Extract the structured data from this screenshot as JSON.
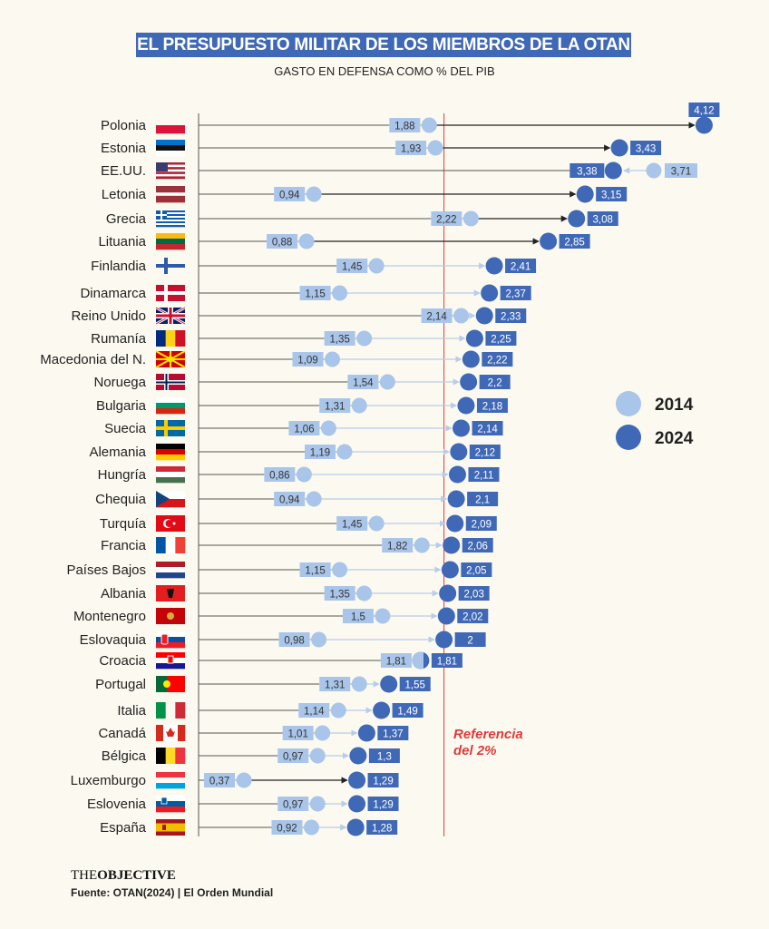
{
  "title": "EL PRESUPUESTO MILITAR DE LOS MIEMBROS DE LA OTAN",
  "subtitle": "GASTO EN DEFENSA COMO % DEL PIB",
  "brand": {
    "the": "THE",
    "objective": "OBJECTIVE"
  },
  "source": "Fuente: OTAN(2024) | El Orden Mundial",
  "chart_data": {
    "type": "dumbbell",
    "title": "EL PRESUPUESTO MILITAR DE LOS MIEMBROS DE LA OTAN",
    "ylabel": "Gasto en defensa como % del PIB",
    "xlim": [
      0,
      4.2
    ],
    "legend": {
      "position": "right",
      "entries": [
        "2014",
        "2024"
      ]
    },
    "colors": {
      "2014": "#a9c5ea",
      "2024": "#3f68b6",
      "reference": "#e03a3a"
    },
    "reference": {
      "value": 2,
      "label_line1": "Referencia",
      "label_line2": "del 2%"
    },
    "countries": [
      {
        "name": "Polonia",
        "v2014": 1.88,
        "v2024": 4.12,
        "l2014": "1,88",
        "l2024": "4,12"
      },
      {
        "name": "Estonia",
        "v2014": 1.93,
        "v2024": 3.43,
        "l2014": "1,93",
        "l2024": "3,43"
      },
      {
        "name": "EE.UU.",
        "v2014": 3.71,
        "v2024": 3.38,
        "l2014": "3,71",
        "l2024": "3,38"
      },
      {
        "name": "Letonia",
        "v2014": 0.94,
        "v2024": 3.15,
        "l2014": "0,94",
        "l2024": "3,15"
      },
      {
        "name": "Grecia",
        "v2014": 2.22,
        "v2024": 3.08,
        "l2014": "2,22",
        "l2024": "3,08"
      },
      {
        "name": "Lituania",
        "v2014": 0.88,
        "v2024": 2.85,
        "l2014": "0,88",
        "l2024": "2,85"
      },
      {
        "name": "Finlandia",
        "v2014": 1.45,
        "v2024": 2.41,
        "l2014": "1,45",
        "l2024": "2,41"
      },
      {
        "name": "Dinamarca",
        "v2014": 1.15,
        "v2024": 2.37,
        "l2014": "1,15",
        "l2024": "2,37"
      },
      {
        "name": "Reino Unido",
        "v2014": 2.14,
        "v2024": 2.33,
        "l2014": "2,14",
        "l2024": "2,33"
      },
      {
        "name": "Rumanía",
        "v2014": 1.35,
        "v2024": 2.25,
        "l2014": "1,35",
        "l2024": "2,25"
      },
      {
        "name": "Macedonia del N.",
        "v2014": 1.09,
        "v2024": 2.22,
        "l2014": "1,09",
        "l2024": "2,22"
      },
      {
        "name": "Noruega",
        "v2014": 1.54,
        "v2024": 2.2,
        "l2014": "1,54",
        "l2024": "2,2"
      },
      {
        "name": "Bulgaria",
        "v2014": 1.31,
        "v2024": 2.18,
        "l2014": "1,31",
        "l2024": "2,18"
      },
      {
        "name": "Suecia",
        "v2014": 1.06,
        "v2024": 2.14,
        "l2014": "1,06",
        "l2024": "2,14"
      },
      {
        "name": "Alemania",
        "v2014": 1.19,
        "v2024": 2.12,
        "l2014": "1,19",
        "l2024": "2,12"
      },
      {
        "name": "Hungría",
        "v2014": 0.86,
        "v2024": 2.11,
        "l2014": "0,86",
        "l2024": "2,11"
      },
      {
        "name": "Chequia",
        "v2014": 0.94,
        "v2024": 2.1,
        "l2014": "0,94",
        "l2024": "2,1"
      },
      {
        "name": "Turquía",
        "v2014": 1.45,
        "v2024": 2.09,
        "l2014": "1,45",
        "l2024": "2,09"
      },
      {
        "name": "Francia",
        "v2014": 1.82,
        "v2024": 2.06,
        "l2014": "1,82",
        "l2024": "2,06"
      },
      {
        "name": "Países Bajos",
        "v2014": 1.15,
        "v2024": 2.05,
        "l2014": "1,15",
        "l2024": "2,05"
      },
      {
        "name": "Albania",
        "v2014": 1.35,
        "v2024": 2.03,
        "l2014": "1,35",
        "l2024": "2,03"
      },
      {
        "name": "Montenegro",
        "v2014": 1.5,
        "v2024": 2.02,
        "l2014": "1,5",
        "l2024": "2,02"
      },
      {
        "name": "Eslovaquia",
        "v2014": 0.98,
        "v2024": 2.0,
        "l2014": "0,98",
        "l2024": "2"
      },
      {
        "name": "Croacia",
        "v2014": 1.81,
        "v2024": 1.81,
        "l2014": "1,81",
        "l2024": "1,81"
      },
      {
        "name": "Portugal",
        "v2014": 1.31,
        "v2024": 1.55,
        "l2014": "1,31",
        "l2024": "1,55"
      },
      {
        "name": "Italia",
        "v2014": 1.14,
        "v2024": 1.49,
        "l2014": "1,14",
        "l2024": "1,49"
      },
      {
        "name": "Canadá",
        "v2014": 1.01,
        "v2024": 1.37,
        "l2014": "1,01",
        "l2024": "1,37"
      },
      {
        "name": "Bélgica",
        "v2014": 0.97,
        "v2024": 1.3,
        "l2014": "0,97",
        "l2024": "1,3"
      },
      {
        "name": "Luxemburgo",
        "v2014": 0.37,
        "v2024": 1.29,
        "l2014": "0,37",
        "l2024": "1,29"
      },
      {
        "name": "Eslovenia",
        "v2014": 0.97,
        "v2024": 1.29,
        "l2014": "0,97",
        "l2024": "1,29"
      },
      {
        "name": "España",
        "v2014": 0.92,
        "v2024": 1.28,
        "l2014": "0,92",
        "l2024": "1,28"
      }
    ]
  }
}
